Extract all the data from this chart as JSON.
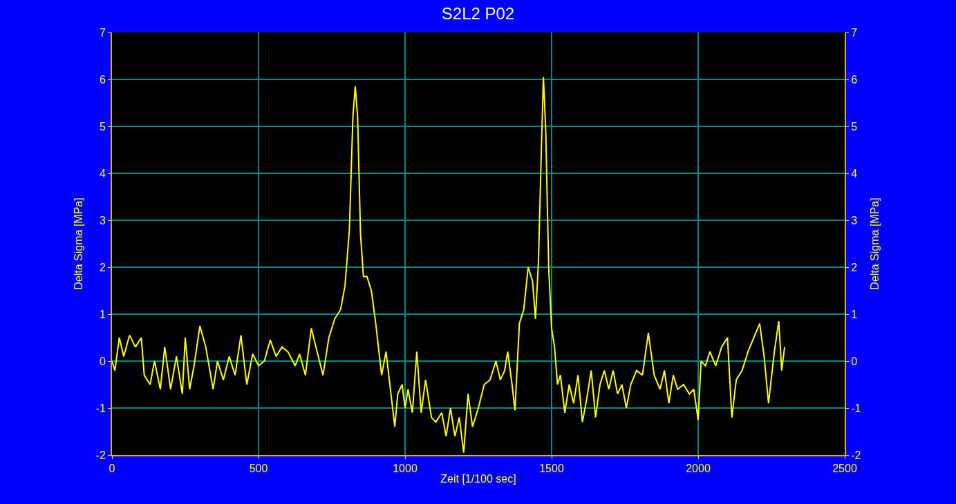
{
  "chart_data": {
    "type": "line",
    "title": "S2L2 P02",
    "xlabel": "Zeit [1/100 sec]",
    "ylabel": "Delta Sigma [MPa]",
    "y2label": "Delta Sigma [MPa]",
    "x": [
      0,
      10,
      25,
      40,
      60,
      80,
      100,
      110,
      130,
      145,
      165,
      180,
      200,
      220,
      240,
      250,
      265,
      280,
      300,
      320,
      345,
      360,
      380,
      400,
      420,
      440,
      460,
      480,
      500,
      520,
      540,
      560,
      580,
      600,
      625,
      640,
      660,
      680,
      700,
      720,
      740,
      760,
      780,
      795,
      810,
      822,
      830,
      838,
      848,
      858,
      870,
      885,
      900,
      920,
      935,
      950,
      965,
      975,
      990,
      1000,
      1010,
      1025,
      1040,
      1055,
      1070,
      1090,
      1105,
      1125,
      1140,
      1155,
      1170,
      1185,
      1200,
      1215,
      1230,
      1250,
      1270,
      1290,
      1310,
      1325,
      1340,
      1350,
      1365,
      1375,
      1390,
      1405,
      1420,
      1435,
      1445,
      1455,
      1465,
      1472,
      1480,
      1490,
      1500,
      1510,
      1520,
      1530,
      1545,
      1560,
      1575,
      1590,
      1605,
      1620,
      1635,
      1650,
      1665,
      1680,
      1695,
      1710,
      1725,
      1740,
      1755,
      1770,
      1790,
      1810,
      1830,
      1850,
      1870,
      1885,
      1900,
      1915,
      1930,
      1950,
      1970,
      1985,
      2000,
      2010,
      2025,
      2040,
      2060,
      2080,
      2100,
      2115,
      2130,
      2150,
      2170,
      2190,
      2210,
      2225,
      2240,
      2260,
      2275,
      2285,
      2295
    ],
    "series": [
      {
        "color": "#ffff00",
        "values": [
          0.0,
          -0.2,
          0.5,
          0.1,
          0.55,
          0.3,
          0.5,
          -0.3,
          -0.5,
          0.0,
          -0.6,
          0.3,
          -0.6,
          0.1,
          -0.7,
          0.5,
          -0.6,
          -0.1,
          0.75,
          0.3,
          -0.6,
          0.0,
          -0.4,
          0.1,
          -0.3,
          0.55,
          -0.5,
          0.15,
          -0.1,
          0.0,
          0.45,
          0.1,
          0.3,
          0.2,
          -0.1,
          0.15,
          -0.3,
          0.7,
          0.2,
          -0.3,
          0.5,
          0.9,
          1.1,
          1.6,
          2.8,
          5.2,
          5.85,
          5.2,
          2.7,
          1.8,
          1.8,
          1.5,
          0.8,
          -0.3,
          0.2,
          -0.6,
          -1.4,
          -0.7,
          -0.5,
          -1.0,
          -0.6,
          -1.1,
          0.2,
          -1.1,
          -0.4,
          -1.2,
          -1.3,
          -1.1,
          -1.6,
          -1.0,
          -1.6,
          -1.2,
          -1.95,
          -0.7,
          -1.4,
          -1.0,
          -0.5,
          -0.4,
          0.0,
          -0.4,
          -0.2,
          0.2,
          -0.5,
          -1.05,
          0.8,
          1.1,
          2.0,
          1.7,
          0.9,
          2.1,
          4.5,
          6.05,
          4.9,
          2.0,
          0.7,
          0.3,
          -0.5,
          -0.3,
          -1.1,
          -0.5,
          -0.9,
          -0.3,
          -1.3,
          -0.8,
          -0.2,
          -1.2,
          -0.5,
          -0.2,
          -0.6,
          -0.2,
          -0.7,
          -0.5,
          -1.0,
          -0.5,
          -0.2,
          -0.3,
          0.6,
          -0.3,
          -0.6,
          -0.2,
          -0.9,
          -0.3,
          -0.6,
          -0.5,
          -0.7,
          -0.6,
          -1.25,
          0.0,
          -0.1,
          0.2,
          -0.1,
          0.3,
          0.5,
          -1.2,
          -0.4,
          -0.2,
          0.2,
          0.5,
          0.8,
          0.1,
          -0.9,
          0.2,
          0.85,
          -0.2,
          0.3
        ]
      }
    ],
    "xlim": [
      0,
      2500
    ],
    "xticks": [
      0,
      500,
      1000,
      1500,
      2000,
      2500
    ],
    "ylim": [
      -2,
      7
    ],
    "yticks": [
      -2,
      -1,
      0,
      1,
      2,
      3,
      4,
      5,
      6,
      7
    ],
    "y2lim": [
      -2,
      7
    ],
    "y2ticks": [
      -2,
      -1,
      0,
      1,
      2,
      3,
      4,
      5,
      6,
      7
    ],
    "grid": true,
    "marker": "none",
    "line_style": "solid"
  }
}
